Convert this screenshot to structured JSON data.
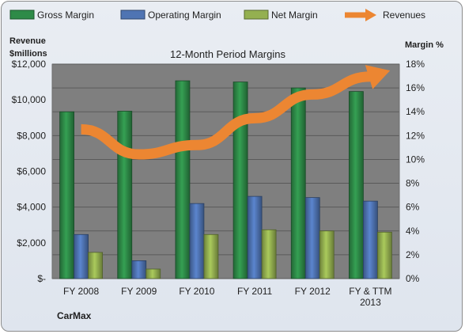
{
  "company_label": "CarMax",
  "chart_data": {
    "type": "bar",
    "title": "12-Month Period Margins",
    "left_axis_title": [
      "Revenue",
      "$millions"
    ],
    "right_axis_title": "Margin %",
    "categories": [
      "FY 2008",
      "FY 2009",
      "FY 2010",
      "FY 2011",
      "FY 2012",
      "FY & TTM 2013"
    ],
    "left_ticks": [
      "$-",
      "$2,000",
      "$4,000",
      "$6,000",
      "$8,000",
      "$10,000",
      "$12,000"
    ],
    "right_ticks": [
      "0%",
      "2%",
      "4%",
      "6%",
      "8%",
      "10%",
      "12%",
      "14%",
      "16%",
      "18%"
    ],
    "ylim_left": [
      0,
      12000
    ],
    "ylim_right": [
      0,
      18
    ],
    "grid": true,
    "legend_position": "top",
    "series": [
      {
        "name": "Gross Margin",
        "type": "bar",
        "axis": "right",
        "color": "#2e8b48",
        "values": [
          14.0,
          14.05,
          16.6,
          16.5,
          16.0,
          15.7
        ]
      },
      {
        "name": "Operating Margin",
        "type": "bar",
        "axis": "right",
        "color": "#4f74b3",
        "values": [
          3.7,
          1.5,
          6.3,
          6.9,
          6.8,
          6.5
        ]
      },
      {
        "name": "Net Margin",
        "type": "bar",
        "axis": "right",
        "color": "#94b050",
        "values": [
          2.2,
          0.8,
          3.7,
          4.1,
          4.0,
          3.9
        ]
      },
      {
        "name": "Revenues",
        "type": "line-arrow",
        "axis": "left",
        "color": "#ec8632",
        "values": [
          8350,
          6950,
          7470,
          8970,
          10300,
          11300
        ]
      }
    ]
  }
}
